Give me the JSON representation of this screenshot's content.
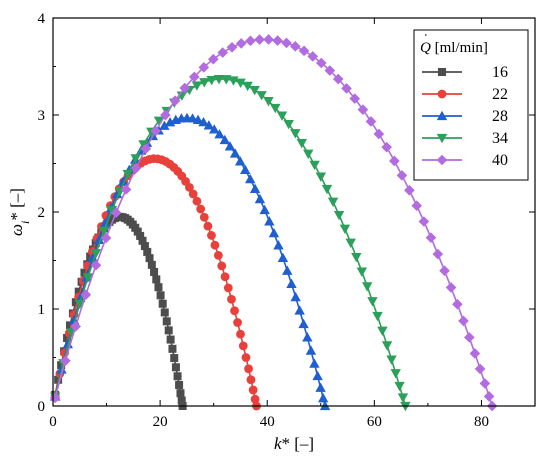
{
  "chart_data": {
    "type": "line",
    "xlabel": "k* [–]",
    "xlabel_var": "k",
    "xlabel_rest": "* [–]",
    "ylabel_var": "ω",
    "ylabel_sub": "i",
    "ylabel_rest": "* [–]",
    "xlim": [
      0,
      90
    ],
    "ylim": [
      0,
      4
    ],
    "xticks": [
      "0",
      "20",
      "40",
      "60",
      "80"
    ],
    "yticks": [
      "0",
      "1",
      "2",
      "3",
      "4"
    ],
    "grid": false,
    "legend_position": "top-right",
    "legend_title_var": "Q",
    "legend_title_rest": " [ml/min]",
    "series": [
      {
        "name": "16",
        "color": "#4d4d4d",
        "marker": "square",
        "kmax": 24.2,
        "peak_x": 12.5,
        "peak_y": 1.95
      },
      {
        "name": "22",
        "color": "#e8413b",
        "marker": "circle",
        "kmax": 38.0,
        "peak_x": 19.0,
        "peak_y": 2.55
      },
      {
        "name": "28",
        "color": "#1f5fcf",
        "marker": "triangle-up",
        "kmax": 50.8,
        "peak_x": 25.0,
        "peak_y": 2.97
      },
      {
        "name": "34",
        "color": "#2aa05a",
        "marker": "triangle-down",
        "kmax": 65.8,
        "peak_x": 31.5,
        "peak_y": 3.37
      },
      {
        "name": "40",
        "color": "#b36be0",
        "marker": "diamond",
        "kmax": 82.0,
        "peak_x": 39.5,
        "peak_y": 3.78
      }
    ]
  }
}
